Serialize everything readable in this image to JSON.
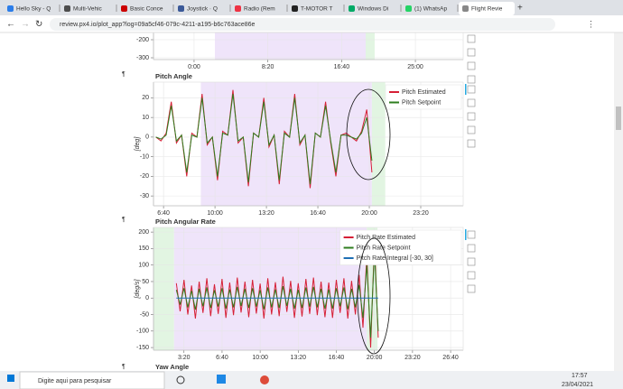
{
  "browser": {
    "tabs": [
      "Hello Sky - Q",
      "Multi-Vehic",
      "Basic Conce",
      "Joystick · Q",
      "Radio (Rem",
      "T-MOTOR T",
      "Windows Di",
      "(1) WhatsAp",
      "Flight Revie"
    ],
    "active_tab": 8,
    "url": "review.px4.io/plot_app?log=09a5cf46-079c-4211-a195-b6c763ace86e"
  },
  "pilcrows": [
    "¶",
    "¶",
    "¶"
  ],
  "chart_data": [
    {
      "type": "line",
      "ylim": [
        -310,
        -80
      ],
      "yticks": [
        -200,
        -300
      ],
      "xlim": [
        -275,
        1824
      ],
      "xticks": [
        {
          "value": 0,
          "label": "0:00"
        },
        {
          "value": 500,
          "label": "8:20"
        },
        {
          "value": 1000,
          "label": "16:40"
        },
        {
          "value": 1500,
          "label": "25:00"
        }
      ],
      "regions": [
        {
          "start": 141,
          "end": 1163,
          "color": "#efe4fa"
        },
        {
          "start": 1163,
          "end": 1224,
          "color": "#e2f5e2"
        }
      ],
      "grid": true,
      "series": []
    },
    {
      "type": "line",
      "title": "Pitch Angle",
      "y_label": "[deg]",
      "ylim": [
        -35,
        28
      ],
      "yticks": [
        20,
        10,
        0,
        -10,
        -20,
        -30
      ],
      "xlim": [
        361,
        1565
      ],
      "xticks": [
        {
          "value": 400,
          "label": "6:40"
        },
        {
          "value": 600,
          "label": "10:00"
        },
        {
          "value": 800,
          "label": "13:20"
        },
        {
          "value": 1000,
          "label": "16:40"
        },
        {
          "value": 1200,
          "label": "20:00"
        },
        {
          "value": 1400,
          "label": "23:20"
        }
      ],
      "regions": [
        {
          "start": 545,
          "end": 1210,
          "color": "#efe4fa"
        },
        {
          "start": 1210,
          "end": 1262,
          "color": "#e2f5e2"
        }
      ],
      "grid": true,
      "legend": "top-right",
      "x": [
        370,
        390,
        410,
        430,
        450,
        470,
        490,
        510,
        530,
        550,
        570,
        590,
        610,
        630,
        650,
        670,
        690,
        710,
        730,
        750,
        770,
        790,
        810,
        830,
        850,
        870,
        890,
        910,
        930,
        950,
        970,
        990,
        1010,
        1030,
        1050,
        1070,
        1090,
        1110,
        1130,
        1150,
        1170,
        1190,
        1210
      ],
      "series": [
        {
          "name": "Pitch Estimated",
          "color": "#d62036",
          "values": [
            0,
            -2,
            2,
            18,
            -3,
            1,
            -20,
            2,
            0,
            22,
            -4,
            0,
            -22,
            3,
            1,
            24,
            -3,
            0,
            -25,
            2,
            0,
            20,
            -5,
            1,
            -24,
            3,
            0,
            22,
            -4,
            1,
            -26,
            2,
            0,
            18,
            -3,
            -20,
            1,
            2,
            0,
            -2,
            3,
            14,
            -18
          ]
        },
        {
          "name": "Pitch Setpoint",
          "color": "#2e7d1e",
          "values": [
            0,
            -1,
            1,
            16,
            -2,
            1,
            -18,
            1,
            0,
            20,
            -3,
            0,
            -20,
            2,
            1,
            22,
            -2,
            0,
            -23,
            2,
            0,
            18,
            -4,
            1,
            -22,
            2,
            0,
            20,
            -3,
            1,
            -24,
            2,
            0,
            16,
            -2,
            -18,
            1,
            1,
            0,
            -1,
            2,
            10,
            -12
          ]
        }
      ]
    },
    {
      "type": "line",
      "title": "Pitch Angular Rate",
      "y_label": "[deg/s]",
      "ylim": [
        -158,
        214
      ],
      "yticks": [
        200,
        150,
        100,
        50,
        0,
        -50,
        -100,
        -150
      ],
      "xlim": [
        40,
        1666
      ],
      "xticks": [
        {
          "value": 200,
          "label": "3:20"
        },
        {
          "value": 400,
          "label": "6:40"
        },
        {
          "value": 600,
          "label": "10:00"
        },
        {
          "value": 800,
          "label": "13:20"
        },
        {
          "value": 1000,
          "label": "16:40"
        },
        {
          "value": 1200,
          "label": "20:00"
        },
        {
          "value": 1400,
          "label": "23:20"
        },
        {
          "value": 1600,
          "label": "26:40"
        }
      ],
      "regions": [
        {
          "start": 40,
          "end": 148,
          "color": "#e2f5e2"
        },
        {
          "start": 148,
          "end": 1160,
          "color": "#efe4fa"
        },
        {
          "start": 1160,
          "end": 1216,
          "color": "#e2f5e2"
        }
      ],
      "grid": true,
      "legend": "top-right",
      "x": [
        160,
        180,
        200,
        220,
        240,
        260,
        280,
        300,
        320,
        340,
        360,
        380,
        400,
        420,
        440,
        460,
        480,
        500,
        520,
        540,
        560,
        580,
        600,
        620,
        640,
        660,
        680,
        700,
        720,
        740,
        760,
        780,
        800,
        820,
        840,
        860,
        880,
        900,
        920,
        940,
        960,
        980,
        1000,
        1020,
        1040,
        1060,
        1080,
        1100,
        1120,
        1140,
        1160,
        1180,
        1200,
        1220
      ],
      "series": [
        {
          "name": "Pitch Rate Estimated",
          "color": "#d62036",
          "values": [
            45,
            -40,
            55,
            -50,
            38,
            -62,
            50,
            -45,
            60,
            -55,
            42,
            -48,
            58,
            -60,
            47,
            -52,
            62,
            -44,
            50,
            -58,
            55,
            -47,
            44,
            -62,
            60,
            -50,
            48,
            -55,
            65,
            -42,
            52,
            -60,
            45,
            -56,
            58,
            -48,
            62,
            -52,
            50,
            -58,
            47,
            -60,
            55,
            -45,
            60,
            -62,
            52,
            -50,
            70,
            -90,
            130,
            -150,
            170,
            -120
          ]
        },
        {
          "name": "Pitch Rate Setpoint",
          "color": "#2e7d1e",
          "values": [
            25,
            -20,
            30,
            -28,
            22,
            -35,
            28,
            -25,
            32,
            -30,
            24,
            -26,
            30,
            -32,
            26,
            -28,
            34,
            -24,
            28,
            -30,
            30,
            -26,
            24,
            -34,
            32,
            -28,
            26,
            -30,
            36,
            -24,
            28,
            -32,
            25,
            -30,
            32,
            -26,
            34,
            -28,
            28,
            -32,
            26,
            -32,
            30,
            -25,
            32,
            -34,
            28,
            -28,
            40,
            -60,
            100,
            -120,
            140,
            -100
          ]
        },
        {
          "name": "Pitch Rate Integral [-30, 30]",
          "color": "#1f6fb4",
          "values": [
            0,
            0,
            0,
            0,
            0,
            0,
            0,
            0,
            0,
            0,
            0,
            0,
            0,
            0,
            0,
            0,
            0,
            0,
            0,
            0,
            0,
            0,
            0,
            0,
            0,
            0,
            0,
            0,
            0,
            0,
            0,
            0,
            0,
            0,
            0,
            0,
            0,
            0,
            0,
            0,
            0,
            0,
            0,
            0,
            0,
            0,
            0,
            0,
            0,
            0,
            0,
            0,
            0,
            0
          ]
        }
      ]
    },
    {
      "type": "line",
      "title": "Yaw Angle"
    }
  ],
  "taskbar": {
    "search": "Digite aqui para pesquisar",
    "time": "17:57",
    "date": "23/04/2021"
  }
}
